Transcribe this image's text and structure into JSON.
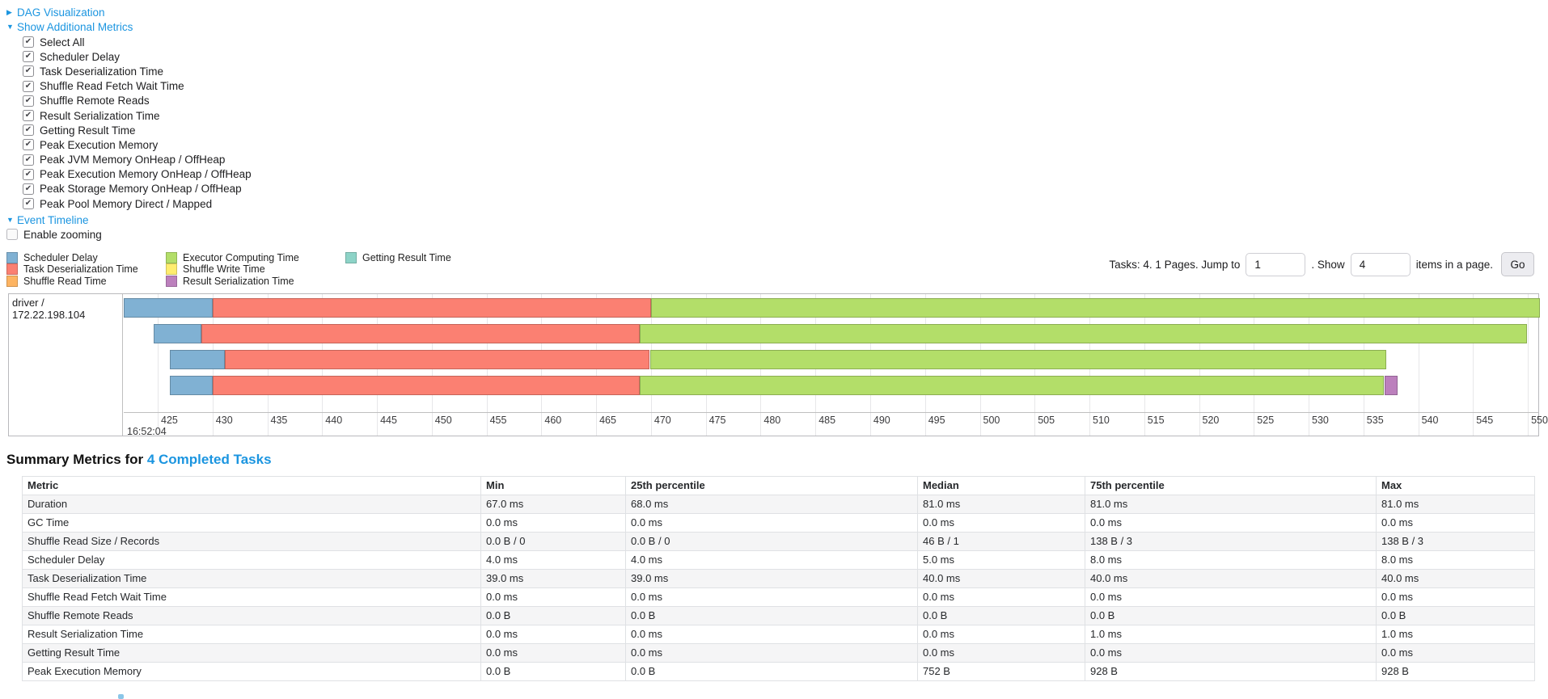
{
  "colors": {
    "link": "#1b95e0",
    "segment": {
      "scheduler_delay": "#80B1D3",
      "task_deserialization": "#FB8072",
      "shuffle_read": "#FDB462",
      "executor_computing": "#B3DE69",
      "shuffle_write": "#FFED6F",
      "result_serialization": "#BC80BD",
      "getting_result": "#8DD3C7"
    }
  },
  "sections": {
    "dag": {
      "label": "DAG Visualization",
      "state": "collapsed"
    },
    "metrics": {
      "label": "Show Additional Metrics",
      "state": "expanded"
    },
    "event_timeline": {
      "label": "Event Timeline",
      "state": "expanded"
    }
  },
  "metric_checkboxes": [
    {
      "label": "Select All",
      "checked": true
    },
    {
      "label": "Scheduler Delay",
      "checked": true
    },
    {
      "label": "Task Deserialization Time",
      "checked": true
    },
    {
      "label": "Shuffle Read Fetch Wait Time",
      "checked": true
    },
    {
      "label": "Shuffle Remote Reads",
      "checked": true
    },
    {
      "label": "Result Serialization Time",
      "checked": true
    },
    {
      "label": "Getting Result Time",
      "checked": true
    },
    {
      "label": "Peak Execution Memory",
      "checked": true
    },
    {
      "label": "Peak JVM Memory OnHeap / OffHeap",
      "checked": true
    },
    {
      "label": "Peak Execution Memory OnHeap / OffHeap",
      "checked": true
    },
    {
      "label": "Peak Storage Memory OnHeap / OffHeap",
      "checked": true
    },
    {
      "label": "Peak Pool Memory Direct / Mapped",
      "checked": true
    }
  ],
  "enable_zooming": {
    "label": "Enable zooming",
    "checked": false
  },
  "legend": [
    {
      "label": "Scheduler Delay",
      "key": "scheduler_delay",
      "col": 0
    },
    {
      "label": "Task Deserialization Time",
      "key": "task_deserialization",
      "col": 0
    },
    {
      "label": "Shuffle Read Time",
      "key": "shuffle_read",
      "col": 0
    },
    {
      "label": "Executor Computing Time",
      "key": "executor_computing",
      "col": 1
    },
    {
      "label": "Shuffle Write Time",
      "key": "shuffle_write",
      "col": 1
    },
    {
      "label": "Result Serialization Time",
      "key": "result_serialization",
      "col": 1
    },
    {
      "label": "Getting Result Time",
      "key": "getting_result",
      "col": 2
    }
  ],
  "pagination": {
    "tasks_text": "Tasks: 4. 1 Pages. Jump to",
    "jump_value": "1",
    "mid_text": ". Show",
    "show_value": "4",
    "tail_text": "items in a page.",
    "go_label": "Go"
  },
  "chart_data": {
    "type": "timeline",
    "group_label": "driver / 172.22.198.104",
    "axis": {
      "major_label": "16:52:04",
      "unit": "ms",
      "tick_min": 425,
      "tick_max": 550,
      "tick_step": 5,
      "view_min": 421.9,
      "view_max": 551.1
    },
    "tasks": [
      {
        "segments": [
          {
            "key": "scheduler_delay",
            "start": 421.9,
            "end": 430.0
          },
          {
            "key": "task_deserialization",
            "start": 430.0,
            "end": 470.0
          },
          {
            "key": "executor_computing",
            "start": 470.0,
            "end": 551.1
          }
        ]
      },
      {
        "segments": [
          {
            "key": "scheduler_delay",
            "start": 424.6,
            "end": 429.0
          },
          {
            "key": "task_deserialization",
            "start": 429.0,
            "end": 469.0
          },
          {
            "key": "executor_computing",
            "start": 469.0,
            "end": 549.9
          }
        ]
      },
      {
        "segments": [
          {
            "key": "scheduler_delay",
            "start": 426.1,
            "end": 431.1
          },
          {
            "key": "task_deserialization",
            "start": 431.1,
            "end": 469.9
          },
          {
            "key": "executor_computing",
            "start": 469.9,
            "end": 537.1
          }
        ]
      },
      {
        "segments": [
          {
            "key": "scheduler_delay",
            "start": 426.1,
            "end": 430.0
          },
          {
            "key": "task_deserialization",
            "start": 430.0,
            "end": 469.0
          },
          {
            "key": "executor_computing",
            "start": 469.0,
            "end": 536.9
          },
          {
            "key": "result_serialization",
            "start": 536.9,
            "end": 538.1
          }
        ]
      }
    ]
  },
  "summary": {
    "title_prefix": "Summary Metrics for ",
    "title_link": "4 Completed Tasks",
    "table": {
      "headers": [
        "Metric",
        "Min",
        "25th percentile",
        "Median",
        "75th percentile",
        "Max"
      ],
      "rows": [
        [
          "Duration",
          "67.0 ms",
          "68.0 ms",
          "81.0 ms",
          "81.0 ms",
          "81.0 ms"
        ],
        [
          "GC Time",
          "0.0 ms",
          "0.0 ms",
          "0.0 ms",
          "0.0 ms",
          "0.0 ms"
        ],
        [
          "Shuffle Read Size / Records",
          "0.0 B / 0",
          "0.0 B / 0",
          "46 B / 1",
          "138 B / 3",
          "138 B / 3"
        ],
        [
          "Scheduler Delay",
          "4.0 ms",
          "4.0 ms",
          "5.0 ms",
          "8.0 ms",
          "8.0 ms"
        ],
        [
          "Task Deserialization Time",
          "39.0 ms",
          "39.0 ms",
          "40.0 ms",
          "40.0 ms",
          "40.0 ms"
        ],
        [
          "Shuffle Read Fetch Wait Time",
          "0.0 ms",
          "0.0 ms",
          "0.0 ms",
          "0.0 ms",
          "0.0 ms"
        ],
        [
          "Shuffle Remote Reads",
          "0.0 B",
          "0.0 B",
          "0.0 B",
          "0.0 B",
          "0.0 B"
        ],
        [
          "Result Serialization Time",
          "0.0 ms",
          "0.0 ms",
          "0.0 ms",
          "1.0 ms",
          "1.0 ms"
        ],
        [
          "Getting Result Time",
          "0.0 ms",
          "0.0 ms",
          "0.0 ms",
          "0.0 ms",
          "0.0 ms"
        ],
        [
          "Peak Execution Memory",
          "0.0 B",
          "0.0 B",
          "752 B",
          "928 B",
          "928 B"
        ]
      ]
    }
  }
}
